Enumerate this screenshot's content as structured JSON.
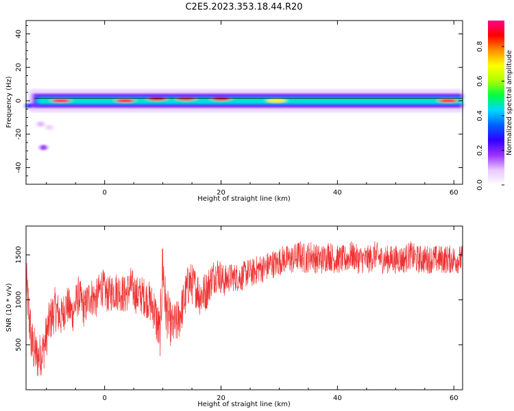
{
  "title": "C2E5.2023.353.18.44.R20",
  "chart_data": [
    {
      "type": "heatmap",
      "xlabel": "Height of straight line (km)",
      "ylabel": "Frequency (Hz)",
      "xlim": [
        -13.5,
        61.5
      ],
      "ylim": [
        -50,
        48
      ],
      "xticks": [
        0,
        20,
        40,
        60
      ],
      "yticks": [
        -40,
        -20,
        0,
        20,
        40
      ],
      "colorbar": {
        "label": "Normalized spectral amplitude",
        "range": [
          0,
          0.95
        ],
        "ticks": [
          0.0,
          0.2,
          0.4,
          0.6,
          0.8
        ],
        "colormap": [
          "#ffffff",
          "#e8c8ff",
          "#9b30ff",
          "#3000ff",
          "#0060ff",
          "#00d8ff",
          "#00ff40",
          "#b0ff00",
          "#ffff00",
          "#ff9000",
          "#ff0000",
          "#ff0088"
        ]
      },
      "hot_spots": [
        {
          "x": -7.5,
          "y": 0,
          "value": 0.92
        },
        {
          "x": 3.5,
          "y": 0,
          "value": 0.9
        },
        {
          "x": 9,
          "y": 1,
          "value": 0.85
        },
        {
          "x": 14,
          "y": 1,
          "value": 0.82
        },
        {
          "x": 20,
          "y": 1,
          "value": 0.85
        },
        {
          "x": 29.5,
          "y": 0,
          "value": 0.7
        },
        {
          "x": 59,
          "y": 0,
          "value": 0.85
        }
      ],
      "grid": false
    },
    {
      "type": "line",
      "xlabel": "Height of straight line (km)",
      "ylabel": "SNR (10 * v/v)",
      "xlim": [
        -13.5,
        61.5
      ],
      "ylim": [
        0,
        1820
      ],
      "xticks": [
        0,
        20,
        40,
        60
      ],
      "yticks": [
        500,
        1000,
        1500
      ],
      "series": [
        {
          "color": "#ee3333",
          "x": [
            -13.5,
            -12.5,
            -11.5,
            -10.5,
            -9.5,
            -8.5,
            -7.5,
            -6.5,
            -5.5,
            -4.5,
            -3.5,
            -2.5,
            -1.5,
            -0.5,
            0.5,
            1.5,
            2.5,
            3.5,
            4.5,
            5.5,
            6.5,
            7.5,
            8.5,
            9.5,
            10,
            10.5,
            11.5,
            12.5,
            13.5,
            14.5,
            15.5,
            16.5,
            17.5,
            18.5,
            19.5,
            20.5,
            21.5,
            22.5,
            23.5,
            24.5,
            25.5,
            26.5,
            27.5,
            28.5,
            29.5,
            30.5,
            31.5,
            32.5,
            33.5,
            34.5,
            35.5,
            36.5,
            37.5,
            38.5,
            39.5,
            40.5,
            41.5,
            42.5,
            43.5,
            44.5,
            45.5,
            46.5,
            47.5,
            48.5,
            49.5,
            50.5,
            51.5,
            52.5,
            53.5,
            54.5,
            55.5,
            56.5,
            57.5,
            58.5,
            59.5,
            60.5,
            61.5
          ],
          "y": [
            1200,
            500,
            350,
            450,
            750,
            900,
            800,
            950,
            850,
            1050,
            900,
            1050,
            1000,
            1150,
            1050,
            1100,
            1100,
            1050,
            1150,
            1050,
            1050,
            1000,
            900,
            600,
            1400,
            900,
            700,
            750,
            950,
            1200,
            1150,
            1050,
            1100,
            1250,
            1300,
            1200,
            1250,
            1250,
            1250,
            1300,
            1300,
            1350,
            1350,
            1400,
            1400,
            1450,
            1450,
            1450,
            1500,
            1450,
            1500,
            1450,
            1450,
            1500,
            1450,
            1450,
            1450,
            1500,
            1450,
            1450,
            1450,
            1500,
            1450,
            1450,
            1450,
            1450,
            1450,
            1500,
            1450,
            1450,
            1450,
            1450,
            1450,
            1450,
            1450,
            1450,
            1450
          ],
          "noise": [
            300,
            300,
            250,
            250,
            250,
            250,
            220,
            220,
            220,
            220,
            220,
            220,
            220,
            220,
            200,
            220,
            220,
            220,
            220,
            220,
            220,
            220,
            250,
            300,
            400,
            300,
            250,
            250,
            250,
            250,
            220,
            250,
            220,
            200,
            200,
            180,
            160,
            160,
            160,
            160,
            160,
            160,
            160,
            160,
            160,
            160,
            160,
            170,
            170,
            170,
            170,
            170,
            170,
            170,
            160,
            160,
            160,
            160,
            160,
            160,
            160,
            160,
            160,
            160,
            160,
            160,
            160,
            160,
            160,
            160,
            160,
            160,
            160,
            160,
            160,
            160,
            160
          ]
        }
      ],
      "grid": false
    }
  ]
}
